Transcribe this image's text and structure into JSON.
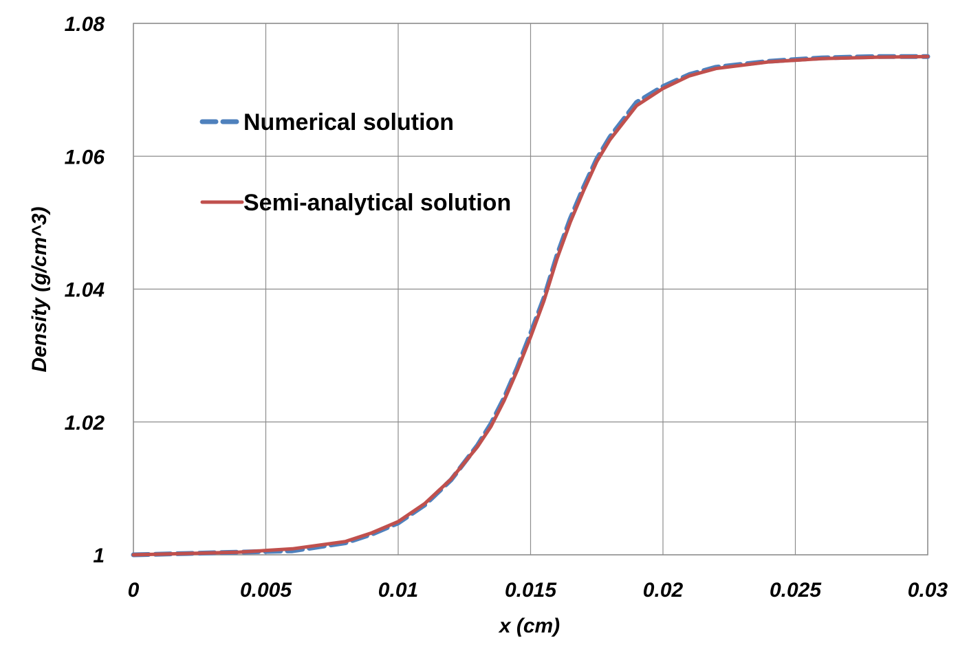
{
  "chart_data": {
    "type": "line",
    "title": "",
    "xlabel": "x (cm)",
    "ylabel": "Density (g/cm^3)",
    "xlim": [
      0,
      0.03
    ],
    "ylim": [
      1,
      1.08
    ],
    "x_ticks": [
      "0",
      "0.005",
      "0.01",
      "0.015",
      "0.02",
      "0.025",
      "0.03"
    ],
    "y_ticks": [
      "1",
      "1.02",
      "1.04",
      "1.06",
      "1.08"
    ],
    "grid": true,
    "legend_position": "top-left",
    "x": [
      0,
      0.002,
      0.004,
      0.006,
      0.008,
      0.009,
      0.01,
      0.011,
      0.012,
      0.013,
      0.0135,
      0.014,
      0.0145,
      0.015,
      0.0155,
      0.016,
      0.0165,
      0.017,
      0.0175,
      0.018,
      0.019,
      0.02,
      0.021,
      0.022,
      0.024,
      0.026,
      0.028,
      0.03
    ],
    "series": [
      {
        "name": "Numerical solution",
        "color": "#4f81bd",
        "style": "dashed",
        "values": [
          1.0,
          1.0002,
          1.0004,
          1.0006,
          1.0018,
          1.0031,
          1.0048,
          1.0075,
          1.0113,
          1.0165,
          1.0197,
          1.0236,
          1.0282,
          1.0333,
          1.0386,
          1.0451,
          1.0506,
          1.0553,
          1.0596,
          1.0629,
          1.0681,
          1.0705,
          1.0723,
          1.0734,
          1.0743,
          1.0748,
          1.075,
          1.075
        ]
      },
      {
        "name": "Semi-analytical solution",
        "color": "#c0504d",
        "style": "solid",
        "values": [
          1.0,
          1.0002,
          1.0004,
          1.0009,
          1.002,
          1.0033,
          1.005,
          1.0077,
          1.0114,
          1.0163,
          1.0193,
          1.0232,
          1.0278,
          1.0328,
          1.0382,
          1.0446,
          1.0501,
          1.0548,
          1.0592,
          1.0625,
          1.0676,
          1.0702,
          1.0721,
          1.0732,
          1.0742,
          1.0747,
          1.0749,
          1.075
        ]
      }
    ]
  }
}
